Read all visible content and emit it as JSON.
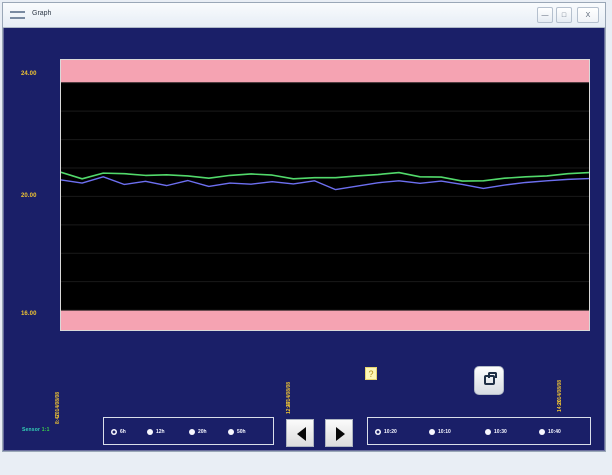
{
  "window": {
    "title": "Graph",
    "controls": {
      "minimize": "—",
      "maximize": "□",
      "close": "X"
    }
  },
  "chart": {
    "y_axis_labels": [
      "24.00",
      "20.00",
      "16.00"
    ],
    "timestamps": {
      "left": [
        "2014/08/08",
        "8:47"
      ],
      "middle": [
        "2014/08/08",
        "12:47"
      ],
      "right": [
        "2014/08/08",
        "14:20"
      ]
    },
    "info_icon_text": "?",
    "colors": {
      "plot_background": "#000000",
      "limit_band": "#f5a3b2",
      "green_series": "#52d96b",
      "blue_series": "#6d6ff0",
      "frame": "#1a1f68",
      "axis_text": "#f0c432"
    }
  },
  "chart_data": {
    "type": "line",
    "title": "",
    "xlabel": "",
    "ylabel": "",
    "ylim": [
      15.3,
      24.8
    ],
    "limit_bands": [
      {
        "from": 24.0,
        "to": 24.8
      },
      {
        "from": 15.3,
        "to": 16.0
      }
    ],
    "x": [
      0,
      4,
      8,
      12,
      16,
      20,
      24,
      28,
      32,
      36,
      40,
      44,
      48,
      52,
      56,
      60,
      64,
      68,
      72,
      76,
      80,
      84,
      88,
      92,
      96,
      100
    ],
    "series": [
      {
        "color": "#52d96b",
        "values": [
          20.85,
          20.62,
          20.82,
          20.8,
          20.74,
          20.76,
          20.72,
          20.64,
          20.74,
          20.79,
          20.75,
          20.62,
          20.66,
          20.66,
          20.72,
          20.77,
          20.84,
          20.69,
          20.68,
          20.54,
          20.55,
          20.64,
          20.69,
          20.72,
          20.8,
          20.84
        ]
      },
      {
        "color": "#6d6ff0",
        "values": [
          20.58,
          20.47,
          20.69,
          20.42,
          20.53,
          20.38,
          20.56,
          20.35,
          20.47,
          20.43,
          20.52,
          20.44,
          20.55,
          20.24,
          20.36,
          20.48,
          20.55,
          20.46,
          20.54,
          20.42,
          20.28,
          20.4,
          20.49,
          20.55,
          20.6,
          20.63
        ]
      }
    ],
    "grid": true,
    "legend": "none"
  },
  "controls": {
    "left_status": {
      "label_part_1": "Sensor",
      "label_part_2": "1:1"
    },
    "range_options": [
      {
        "label": "6h",
        "selected": true
      },
      {
        "label": "12h",
        "selected": false
      },
      {
        "label": "20h",
        "selected": false
      },
      {
        "label": "50h",
        "selected": false
      }
    ],
    "time_options": [
      {
        "label": "10:20",
        "selected": true
      },
      {
        "label": "10:10",
        "selected": false
      },
      {
        "label": "10:30",
        "selected": false
      },
      {
        "label": "10:40",
        "selected": false
      }
    ]
  }
}
